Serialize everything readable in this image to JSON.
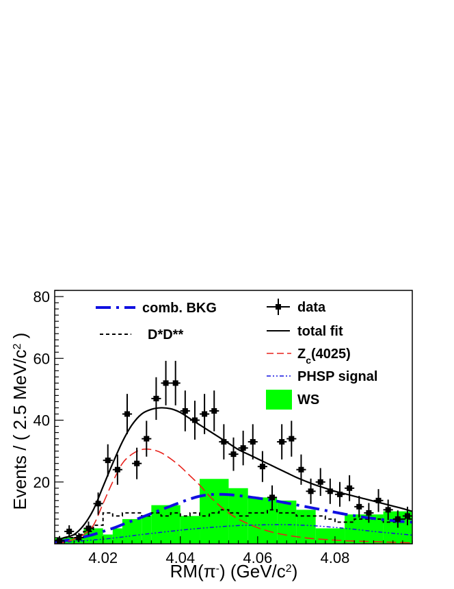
{
  "chart_data": {
    "type": "histogram-fit",
    "xlabel": {
      "main": "RM(π",
      "sup1": "-",
      "mid": ") (GeV/c",
      "sup2": "2",
      "end": ")"
    },
    "ylabel": {
      "main": "Events / ( 2.5 MeV/c",
      "sup": "2",
      "end": " )"
    },
    "xlim": [
      4.0075,
      4.1
    ],
    "ylim": [
      0,
      82
    ],
    "xticks": [
      {
        "v": 4.02,
        "label": "4.02"
      },
      {
        "v": 4.04,
        "label": "4.04"
      },
      {
        "v": 4.06,
        "label": "4.06"
      },
      {
        "v": 4.08,
        "label": "4.08"
      }
    ],
    "yticks": [
      {
        "v": 20,
        "label": "20"
      },
      {
        "v": 40,
        "label": "40"
      },
      {
        "v": 60,
        "label": "60"
      },
      {
        "v": 80,
        "label": "80"
      }
    ],
    "bin_width": 0.0025,
    "data_points": [
      {
        "x": 4.00875,
        "y": 1,
        "err": 1.5
      },
      {
        "x": 4.01125,
        "y": 4,
        "err": 2
      },
      {
        "x": 4.01375,
        "y": 2,
        "err": 1.5
      },
      {
        "x": 4.01625,
        "y": 5,
        "err": 2.2
      },
      {
        "x": 4.01875,
        "y": 13,
        "err": 3.6
      },
      {
        "x": 4.02125,
        "y": 27,
        "err": 5.2
      },
      {
        "x": 4.02375,
        "y": 24,
        "err": 4.9
      },
      {
        "x": 4.02625,
        "y": 42,
        "err": 6.5
      },
      {
        "x": 4.02875,
        "y": 26,
        "err": 5.1
      },
      {
        "x": 4.03125,
        "y": 34,
        "err": 5.8
      },
      {
        "x": 4.03375,
        "y": 47,
        "err": 6.9
      },
      {
        "x": 4.03625,
        "y": 52,
        "err": 7.2
      },
      {
        "x": 4.03875,
        "y": 52,
        "err": 7.2
      },
      {
        "x": 4.04125,
        "y": 43,
        "err": 6.6
      },
      {
        "x": 4.04375,
        "y": 40,
        "err": 6.3
      },
      {
        "x": 4.04625,
        "y": 42,
        "err": 6.5
      },
      {
        "x": 4.04875,
        "y": 43,
        "err": 6.6
      },
      {
        "x": 4.05125,
        "y": 33,
        "err": 5.7
      },
      {
        "x": 4.05375,
        "y": 29,
        "err": 5.4
      },
      {
        "x": 4.05625,
        "y": 31,
        "err": 5.6
      },
      {
        "x": 4.05875,
        "y": 33,
        "err": 5.7
      },
      {
        "x": 4.06125,
        "y": 25,
        "err": 5.0
      },
      {
        "x": 4.06375,
        "y": 15,
        "err": 3.9
      },
      {
        "x": 4.06625,
        "y": 33,
        "err": 5.7
      },
      {
        "x": 4.06875,
        "y": 34,
        "err": 5.8
      },
      {
        "x": 4.07125,
        "y": 24,
        "err": 4.9
      },
      {
        "x": 4.07375,
        "y": 17,
        "err": 4.1
      },
      {
        "x": 4.07625,
        "y": 20,
        "err": 4.5
      },
      {
        "x": 4.07875,
        "y": 17,
        "err": 4.1
      },
      {
        "x": 4.08125,
        "y": 16,
        "err": 4.0
      },
      {
        "x": 4.08375,
        "y": 18,
        "err": 4.2
      },
      {
        "x": 4.08625,
        "y": 12,
        "err": 3.5
      },
      {
        "x": 4.08875,
        "y": 10,
        "err": 3.2
      },
      {
        "x": 4.09125,
        "y": 14,
        "err": 3.7
      },
      {
        "x": 4.09375,
        "y": 11,
        "err": 3.3
      },
      {
        "x": 4.09625,
        "y": 8,
        "err": 2.8
      },
      {
        "x": 4.09875,
        "y": 9,
        "err": 3.0
      }
    ],
    "ws_histogram": [
      {
        "x0": 4.0075,
        "x1": 4.015,
        "y": 2
      },
      {
        "x0": 4.015,
        "x1": 4.02,
        "y": 5
      },
      {
        "x0": 4.02,
        "x1": 4.0225,
        "y": 3
      },
      {
        "x0": 4.0225,
        "x1": 4.025,
        "y": 5
      },
      {
        "x0": 4.025,
        "x1": 4.03,
        "y": 8
      },
      {
        "x0": 4.03,
        "x1": 4.0325,
        "y": 9
      },
      {
        "x0": 4.0325,
        "x1": 4.04,
        "y": 12.5
      },
      {
        "x0": 4.04,
        "x1": 4.045,
        "y": 9
      },
      {
        "x0": 4.045,
        "x1": 4.0525,
        "y": 21
      },
      {
        "x0": 4.0525,
        "x1": 4.0575,
        "y": 18
      },
      {
        "x0": 4.0575,
        "x1": 4.065,
        "y": 15
      },
      {
        "x0": 4.065,
        "x1": 4.07,
        "y": 14
      },
      {
        "x0": 4.07,
        "x1": 4.075,
        "y": 11
      },
      {
        "x0": 4.075,
        "x1": 4.0825,
        "y": 5
      },
      {
        "x0": 4.0825,
        "x1": 4.0925,
        "y": 9.5
      },
      {
        "x0": 4.0925,
        "x1": 4.1,
        "y": 10.5
      }
    ],
    "dstar_dstarstar": [
      {
        "x0": 4.0075,
        "x1": 4.01,
        "y": 1
      },
      {
        "x0": 4.01,
        "x1": 4.0125,
        "y": 2
      },
      {
        "x0": 4.0125,
        "x1": 4.015,
        "y": 3
      },
      {
        "x0": 4.015,
        "x1": 4.0175,
        "y": 4
      },
      {
        "x0": 4.0175,
        "x1": 4.02,
        "y": 6
      },
      {
        "x0": 4.02,
        "x1": 4.0225,
        "y": 10
      },
      {
        "x0": 4.0225,
        "x1": 4.025,
        "y": 9
      },
      {
        "x0": 4.025,
        "x1": 4.0275,
        "y": 10
      },
      {
        "x0": 4.0275,
        "x1": 4.03,
        "y": 10
      },
      {
        "x0": 4.03,
        "x1": 4.0325,
        "y": 9
      },
      {
        "x0": 4.0325,
        "x1": 4.035,
        "y": 10
      },
      {
        "x0": 4.035,
        "x1": 4.0375,
        "y": 9
      },
      {
        "x0": 4.0375,
        "x1": 4.04,
        "y": 10
      },
      {
        "x0": 4.04,
        "x1": 4.0425,
        "y": 9
      },
      {
        "x0": 4.0425,
        "x1": 4.045,
        "y": 10
      },
      {
        "x0": 4.045,
        "x1": 4.0475,
        "y": 9
      },
      {
        "x0": 4.0475,
        "x1": 4.05,
        "y": 10
      },
      {
        "x0": 4.05,
        "x1": 4.0525,
        "y": 11
      },
      {
        "x0": 4.0525,
        "x1": 4.055,
        "y": 10
      },
      {
        "x0": 4.055,
        "x1": 4.0575,
        "y": 9
      },
      {
        "x0": 4.0575,
        "x1": 4.06,
        "y": 10
      },
      {
        "x0": 4.06,
        "x1": 4.0625,
        "y": 10
      },
      {
        "x0": 4.0625,
        "x1": 4.065,
        "y": 11
      },
      {
        "x0": 4.065,
        "x1": 4.0675,
        "y": 10
      },
      {
        "x0": 4.0675,
        "x1": 4.07,
        "y": 10
      },
      {
        "x0": 4.07,
        "x1": 4.0725,
        "y": 9
      },
      {
        "x0": 4.0725,
        "x1": 4.075,
        "y": 9
      },
      {
        "x0": 4.075,
        "x1": 4.0775,
        "y": 9
      },
      {
        "x0": 4.0775,
        "x1": 4.08,
        "y": 8
      },
      {
        "x0": 4.08,
        "x1": 4.0825,
        "y": 7
      },
      {
        "x0": 4.0825,
        "x1": 4.085,
        "y": 7
      },
      {
        "x0": 4.085,
        "x1": 4.0875,
        "y": 8
      },
      {
        "x0": 4.0875,
        "x1": 4.09,
        "y": 8
      },
      {
        "x0": 4.09,
        "x1": 4.0925,
        "y": 8
      },
      {
        "x0": 4.0925,
        "x1": 4.095,
        "y": 7
      },
      {
        "x0": 4.095,
        "x1": 4.0975,
        "y": 7
      },
      {
        "x0": 4.0975,
        "x1": 4.1,
        "y": 8
      }
    ],
    "curves": [
      {
        "name": "total fit",
        "x": [
          4.0075,
          4.01,
          4.0125,
          4.015,
          4.0175,
          4.02,
          4.0225,
          4.025,
          4.0275,
          4.03,
          4.0325,
          4.035,
          4.0375,
          4.04,
          4.0425,
          4.045,
          4.0475,
          4.05,
          4.0525,
          4.055,
          4.0575,
          4.06,
          4.0625,
          4.065,
          4.0675,
          4.07,
          4.0725,
          4.075,
          4.0775,
          4.08,
          4.0825,
          4.085,
          4.0875,
          4.09,
          4.0925,
          4.095,
          4.0975,
          4.1
        ],
        "y": [
          1,
          2,
          3,
          6,
          11,
          18.5,
          26,
          33,
          38.5,
          42,
          43.5,
          44,
          43.7,
          42.5,
          40.5,
          38.5,
          36.5,
          34.5,
          32.5,
          30.5,
          29,
          27.5,
          26,
          24.5,
          23,
          21.5,
          20.2,
          19,
          18,
          17,
          16.2,
          15.4,
          14.6,
          13.8,
          13,
          12.2,
          11.4,
          10.5
        ]
      },
      {
        "name": "Zc(4025)",
        "x": [
          4.0075,
          4.01,
          4.0125,
          4.015,
          4.0175,
          4.02,
          4.0225,
          4.025,
          4.0275,
          4.03,
          4.0325,
          4.035,
          4.0375,
          4.04,
          4.0425,
          4.045,
          4.0475,
          4.05,
          4.0525,
          4.055,
          4.0575,
          4.06,
          4.0625,
          4.065,
          4.0675,
          4.07,
          4.0725,
          4.075,
          4.0775,
          4.08,
          4.0825,
          4.085,
          4.0875,
          4.09,
          4.0925,
          4.095,
          4.0975,
          4.1
        ],
        "y": [
          0,
          0.5,
          1.5,
          3,
          6,
          13,
          20,
          26,
          29,
          30.5,
          30.5,
          29.5,
          27.5,
          25,
          22,
          19,
          15.5,
          12.5,
          10,
          8,
          6.5,
          5.2,
          4.2,
          3.4,
          2.8,
          2.3,
          1.9,
          1.6,
          1.4,
          1.2,
          1.0,
          0.9,
          0.8,
          0.7,
          0.6,
          0.5,
          0.4,
          0.3
        ]
      },
      {
        "name": "comb. BKG",
        "x": [
          4.0075,
          4.01,
          4.0125,
          4.015,
          4.0175,
          4.02,
          4.0225,
          4.025,
          4.0275,
          4.03,
          4.0325,
          4.035,
          4.0375,
          4.04,
          4.0425,
          4.045,
          4.0475,
          4.05,
          4.0525,
          4.055,
          4.0575,
          4.06,
          4.0625,
          4.065,
          4.0675,
          4.07,
          4.0725,
          4.075,
          4.0775,
          4.08,
          4.0825,
          4.085,
          4.0875,
          4.09,
          4.0925,
          4.095,
          4.0975,
          4.1
        ],
        "y": [
          0.5,
          1,
          1.5,
          2.2,
          3,
          4,
          5,
          6.2,
          7.4,
          8.6,
          9.8,
          11,
          12.2,
          13.4,
          14.5,
          15.4,
          15.9,
          16,
          15.9,
          15.6,
          15.2,
          14.8,
          14.3,
          13.8,
          13.2,
          12.6,
          12,
          11.4,
          10.8,
          10.2,
          9.6,
          9.1,
          8.6,
          8.2,
          7.8,
          7.5,
          7.2,
          7
        ]
      },
      {
        "name": "PHSP signal",
        "x": [
          4.0075,
          4.01,
          4.015,
          4.02,
          4.025,
          4.03,
          4.035,
          4.04,
          4.045,
          4.05,
          4.055,
          4.06,
          4.065,
          4.07,
          4.075,
          4.08,
          4.085,
          4.09,
          4.095,
          4.1
        ],
        "y": [
          0.2,
          0.5,
          1,
          1.5,
          2.2,
          3,
          3.7,
          4.4,
          5,
          5.5,
          5.9,
          6.1,
          6.2,
          6.1,
          5.8,
          5.3,
          4.7,
          4,
          3.4,
          2.8
        ]
      }
    ],
    "legend": {
      "data": "data",
      "total_fit": "total fit",
      "zc_main": "Z",
      "zc_sub": "c",
      "zc_end": "(4025)",
      "phsp": "PHSP signal",
      "ws": "WS",
      "comb_bkg": "comb. BKG",
      "dstar": "D*D**"
    },
    "colors": {
      "data": "#000000",
      "total_fit": "#000000",
      "zc": "#e8201a",
      "comb_bkg": "#1010e0",
      "phsp": "#1010e0",
      "ws": "#00ff00",
      "dstar": "#000000"
    }
  }
}
